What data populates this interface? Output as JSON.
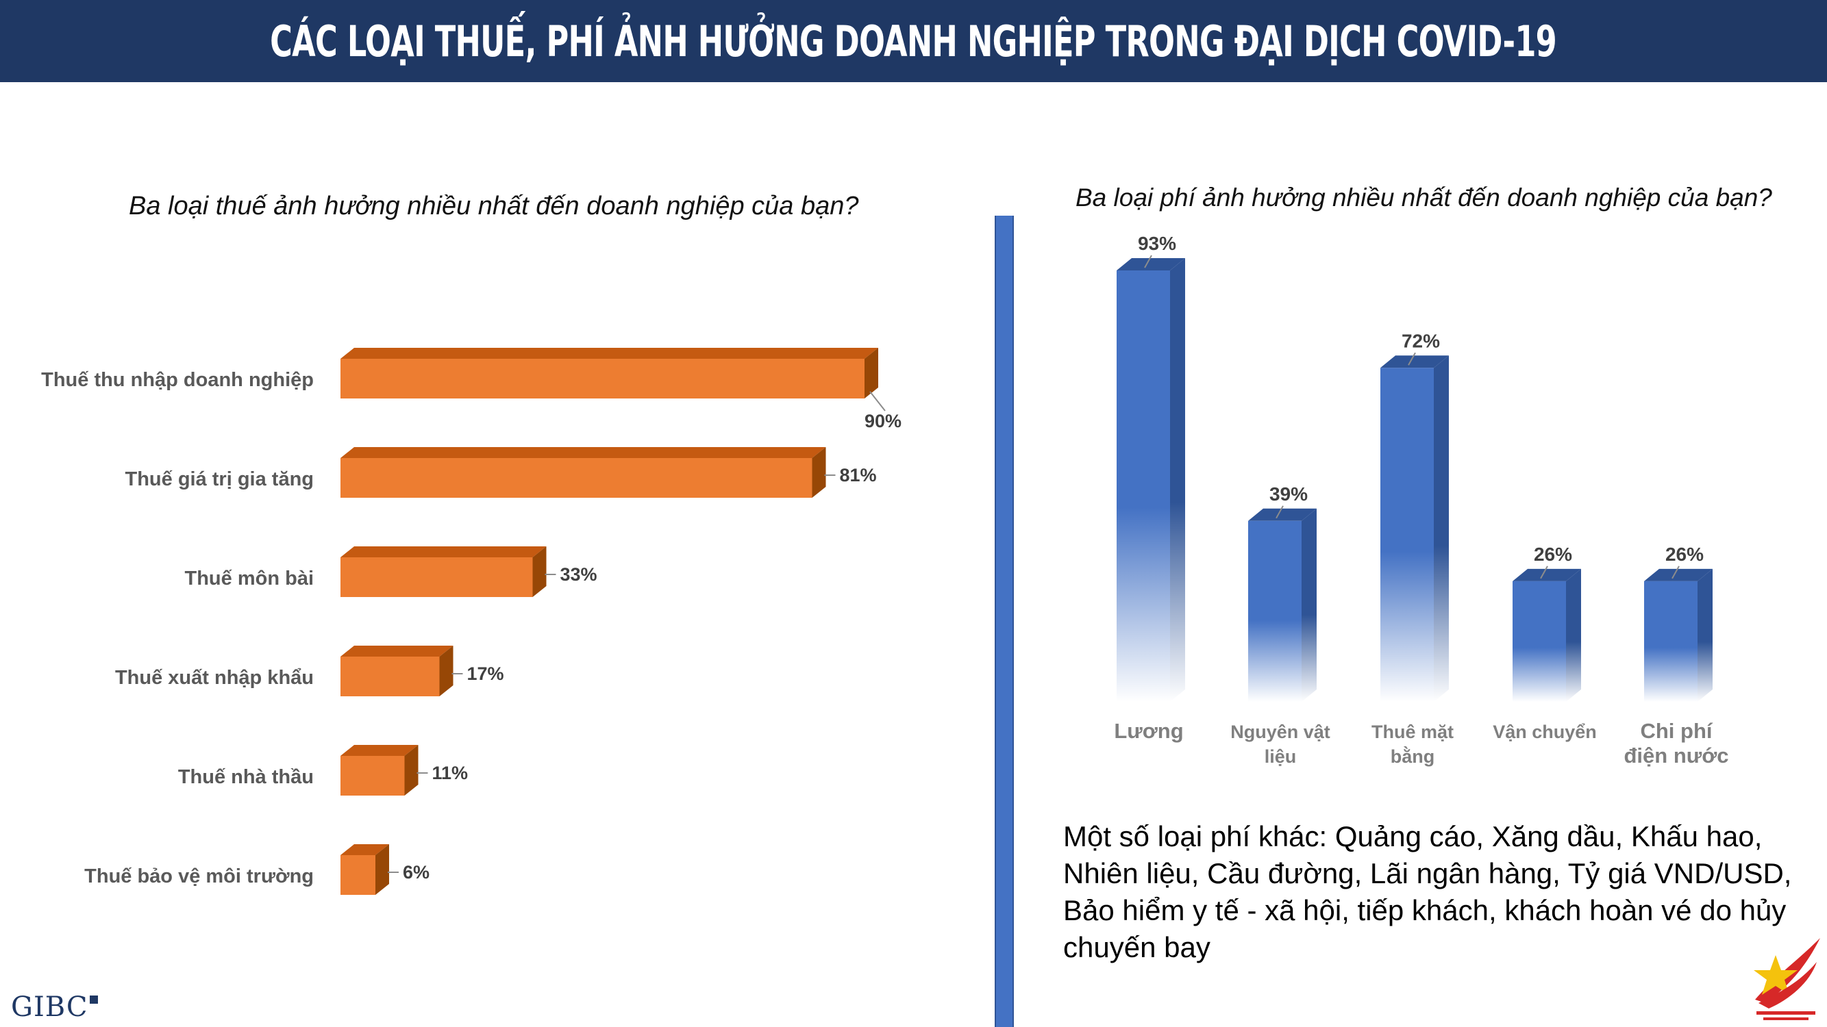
{
  "header": {
    "title": "CÁC LOẠI THUẾ, PHÍ ẢNH HƯỞNG DOANH NGHIỆP TRONG ĐẠI DỊCH COVID-19"
  },
  "chart_data": [
    {
      "type": "bar",
      "orientation": "horizontal",
      "title": "Ba loại thuế ảnh hưởng nhiều nhất đến doanh nghiệp của bạn?",
      "categories": [
        "Thuế thu nhập doanh nghiệp",
        "Thuế giá trị gia tăng",
        "Thuế môn bài",
        "Thuế xuất nhập khẩu",
        "Thuế nhà thầu",
        "Thuế bảo vệ môi trường"
      ],
      "values": [
        90,
        81,
        33,
        17,
        11,
        6
      ],
      "data_labels": [
        "90%",
        "81%",
        "33%",
        "17%",
        "11%",
        "6%"
      ],
      "unit": "%",
      "xlim": [
        0,
        100
      ],
      "grid": false,
      "legend": "none",
      "color": "#ed7d31"
    },
    {
      "type": "bar",
      "orientation": "vertical",
      "title": "Ba loại phí ảnh hưởng nhiều nhất đến doanh nghiệp của bạn?",
      "categories": [
        "Lương",
        "Nguyên vật liệu",
        "Thuê mặt bằng",
        "Vận chuyển",
        "Chi phí điện nước"
      ],
      "category_lines": [
        [
          "Lương"
        ],
        [
          "Nguyên vật",
          "liệu"
        ],
        [
          "Thuê mặt",
          "bằng"
        ],
        [
          "Vận chuyển"
        ],
        [
          "Chi phí",
          "điện nước"
        ]
      ],
      "values": [
        93,
        39,
        72,
        26,
        26
      ],
      "data_labels": [
        "93%",
        "39%",
        "72%",
        "26%",
        "26%"
      ],
      "unit": "%",
      "ylim": [
        0,
        100
      ],
      "grid": false,
      "legend": "none",
      "color": "#4472c4"
    }
  ],
  "note": "Một số loại phí khác: Quảng cáo, Xăng dầu, Khấu hao, Nhiên liệu, Cầu đường, Lãi ngân hàng, Tỷ giá VND/USD, Bảo hiểm y tế - xã hội, tiếp khách, khách hoàn vé do hủy chuyến bay",
  "logos": {
    "left": "GIBC"
  }
}
